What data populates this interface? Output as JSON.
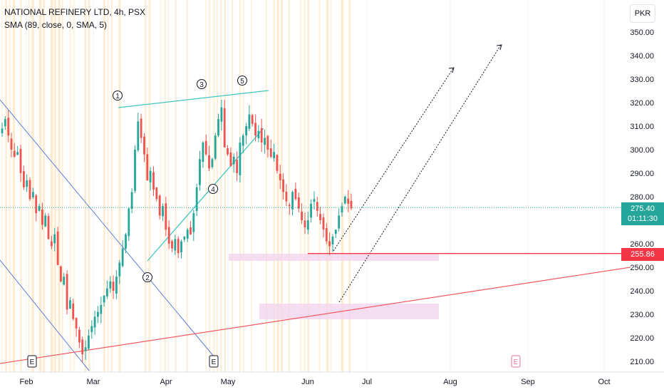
{
  "header": {
    "title": "NATIONAL REFINERY LTD, 4h, PSX",
    "indicator": "SMA (89, close, 0, SMA, 5)"
  },
  "currency": "PKR",
  "price_axis": {
    "ticks": [
      "350.00",
      "340.00",
      "330.00",
      "320.00",
      "310.00",
      "300.00",
      "290.00",
      "280.00",
      "260.00",
      "250.00",
      "240.00",
      "230.00",
      "220.00",
      "210.00"
    ]
  },
  "time_axis": {
    "labels": [
      "Feb",
      "Mar",
      "Apr",
      "May",
      "Jun",
      "Jul",
      "Aug",
      "Sep",
      "Oct"
    ]
  },
  "current_price": {
    "value": "275.40",
    "countdown": "01:11:30"
  },
  "support_level": {
    "value": "255.86"
  },
  "wave_labels": [
    "1",
    "2",
    "3",
    "4",
    "5"
  ],
  "earnings_markers": [
    "E",
    "E",
    "E"
  ],
  "colors": {
    "up": "#26a69a",
    "down": "#ef5350",
    "support": "#f23645",
    "wedge": "#3fc6c0",
    "channel": "#5b7fd1",
    "zone": "#f1d3ee"
  },
  "chart_data": {
    "type": "candlestick",
    "title": "NATIONAL REFINERY LTD, 4h, PSX",
    "ylim": [
      207,
      356
    ],
    "price_levels": {
      "current": 275.4,
      "support": 255.86
    },
    "closes": [
      309,
      313,
      306,
      300,
      297,
      299,
      290,
      284,
      287,
      279,
      282,
      273,
      276,
      268,
      272,
      262,
      259,
      264,
      251,
      244,
      246,
      232,
      236,
      228,
      224,
      218,
      213,
      216,
      221,
      225,
      229,
      231,
      234,
      238,
      241,
      244,
      240,
      246,
      252,
      258,
      264,
      275,
      282,
      300,
      312,
      305,
      298,
      287,
      291,
      283,
      279,
      272,
      276,
      266,
      260,
      258,
      262,
      256,
      261,
      263,
      266,
      264,
      273,
      284,
      296,
      303,
      298,
      292,
      296,
      306,
      313,
      318,
      301,
      298,
      293,
      297,
      290,
      303,
      306,
      310,
      315,
      311,
      306,
      308,
      303,
      305,
      300,
      297,
      299,
      291,
      287,
      282,
      278,
      276,
      282,
      279,
      275,
      270,
      267,
      270,
      277,
      279,
      274,
      270,
      266,
      261,
      259,
      263,
      266,
      272,
      276,
      280,
      277,
      275
    ]
  }
}
